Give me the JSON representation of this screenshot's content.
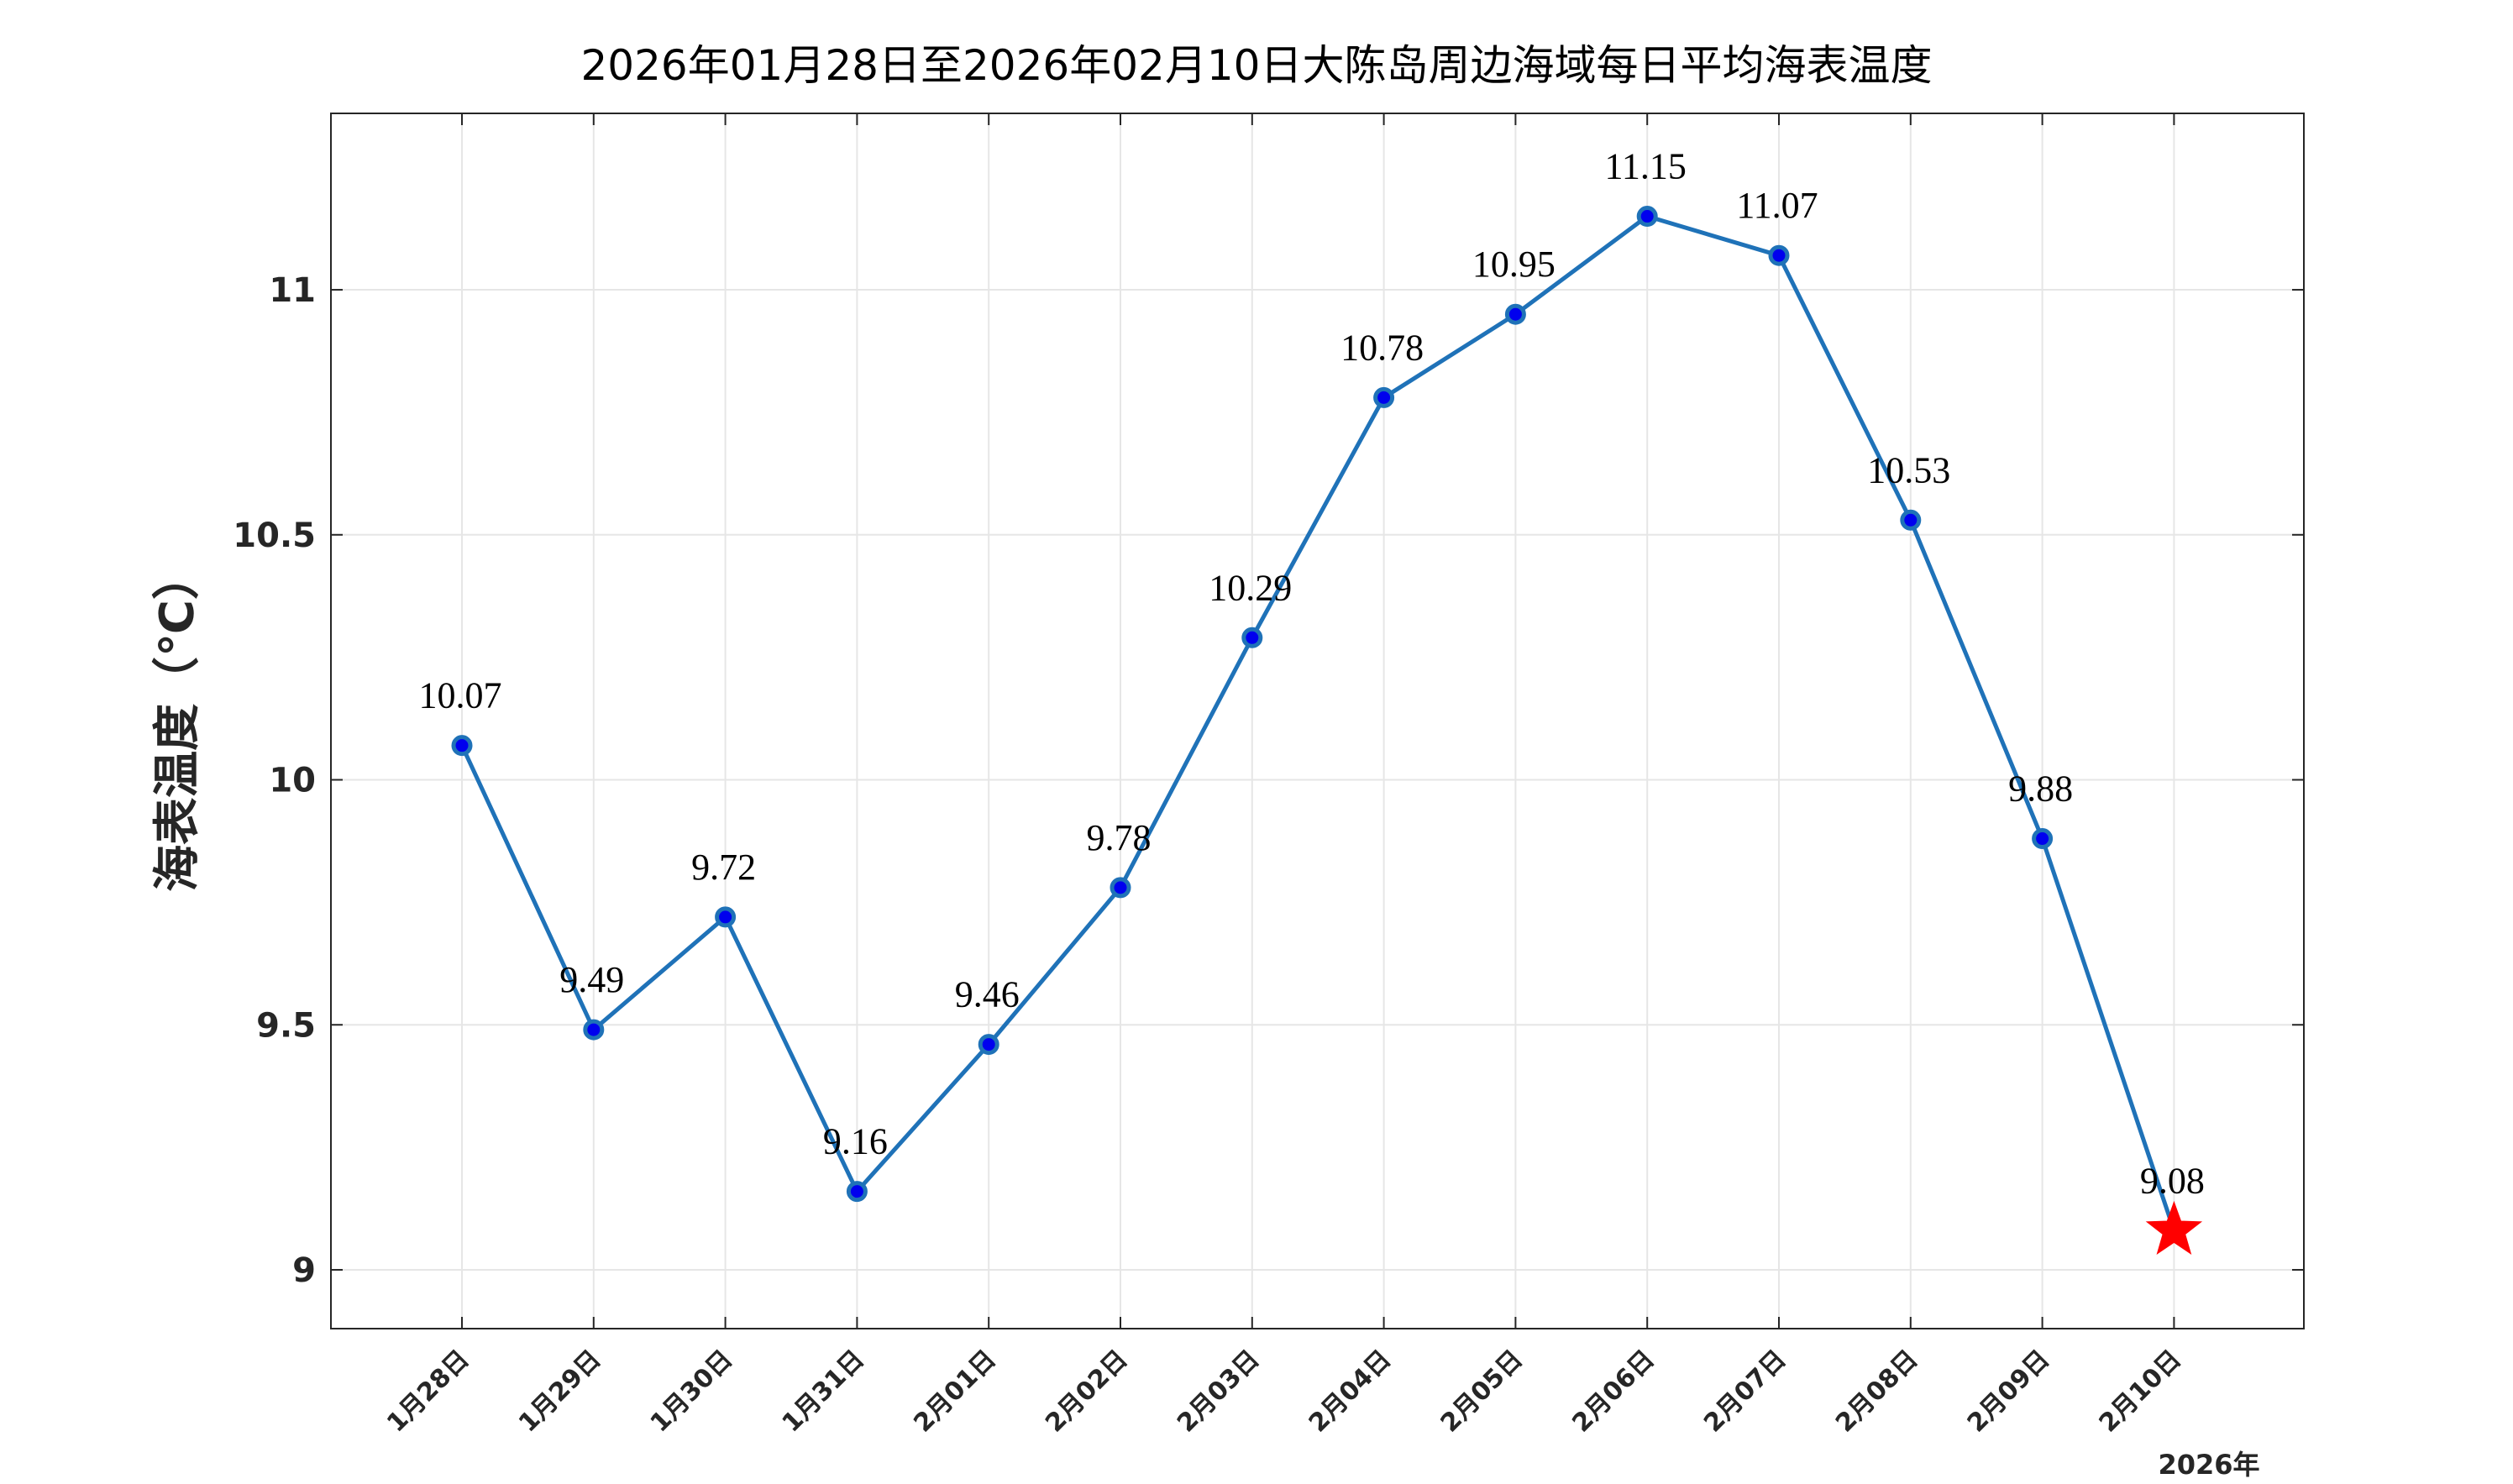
{
  "chart_data": {
    "type": "line",
    "title": "2026年01月28日至2026年02月10日大陈岛周边海域每日平均海表温度",
    "ylabel": "海表温度（℃）",
    "xlabel": "",
    "year_label": "2026年",
    "categories": [
      "1月28日",
      "1月29日",
      "1月30日",
      "1月31日",
      "2月01日",
      "2月02日",
      "2月03日",
      "2月04日",
      "2月05日",
      "2月06日",
      "2月07日",
      "2月08日",
      "2月09日",
      "2月10日"
    ],
    "values": [
      10.07,
      9.49,
      9.72,
      9.16,
      9.46,
      9.78,
      10.29,
      10.78,
      10.95,
      11.15,
      11.07,
      10.53,
      9.88,
      9.08
    ],
    "value_labels": [
      "10.07",
      "9.49",
      "9.72",
      "9.16",
      "9.46",
      "9.78",
      "10.29",
      "10.78",
      "10.95",
      "11.15",
      "11.07",
      "10.53",
      "9.88",
      "9.08"
    ],
    "ylim": [
      8.88,
      11.36
    ],
    "yticks": [
      9,
      9.5,
      10,
      10.5,
      11
    ],
    "ytick_labels": [
      "9",
      "9.5",
      "10",
      "10.5",
      "11"
    ],
    "grid": true,
    "legend": "none",
    "colors": {
      "line": "#1f72b8",
      "marker_fill": "#0000ee",
      "marker_edge": "#1f72b8",
      "highlight": "#ff0000",
      "grid": "#e6e6e6",
      "axes": "#262626"
    },
    "highlight": {
      "category": "2月10日",
      "marker": "star"
    }
  }
}
